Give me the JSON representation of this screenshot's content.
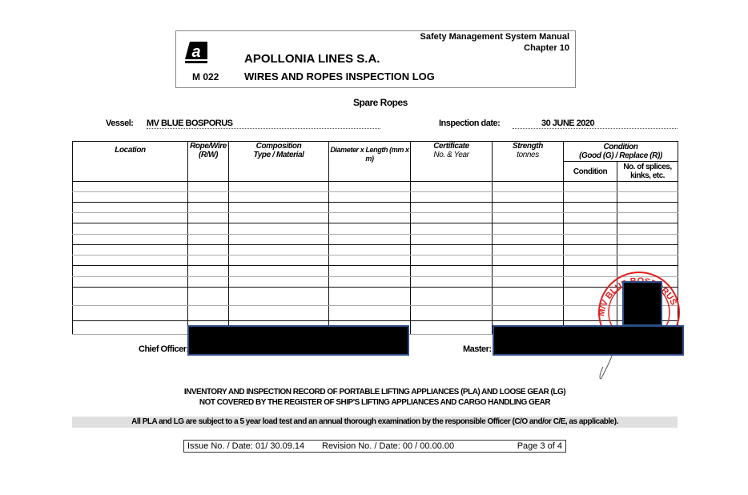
{
  "header": {
    "manual": "Safety Management System Manual",
    "chapter": "Chapter 10",
    "company": "APOLLONIA LINES S.A.",
    "form_code": "M 022",
    "form_title": "WIRES AND ROPES INSPECTION LOG",
    "logo_letter": "a"
  },
  "section_title": "Spare Ropes",
  "vessel": {
    "label": "Vessel:",
    "value": "MV BLUE BOSPORUS"
  },
  "inspection": {
    "label": "Inspection date:",
    "value": "30 JUNE 2020"
  },
  "table": {
    "headers": {
      "location": "Location",
      "rope_wire_1": "Rope/Wire",
      "rope_wire_2": "(R/W)",
      "composition_1": "Composition",
      "composition_2": "Type / Material",
      "diameter": "Diameter x Length (mm x m)",
      "certificate_1": "Certificate",
      "certificate_2": "No. & Year",
      "strength_1": "Strength",
      "strength_2": "tonnes",
      "condition_1": "Condition",
      "condition_2": "(Good (G) / Replace (R))"
    },
    "subheaders": {
      "condition": "Condition",
      "splices": "No. of splices, kinks, etc."
    }
  },
  "signatures": {
    "chief_officer": "Chief Officer:",
    "master": "Master:"
  },
  "stamp": {
    "text": "M/V BLUE BOSPORUS",
    "color": "#e02020"
  },
  "notes": {
    "line1": "INVENTORY AND INSPECTION RECORD OF PORTABLE LIFTING APPLIANCES (PLA) AND LOOSE GEAR (LG)",
    "line2": "NOT COVERED BY THE REGISTER OF SHIP'S LIFTING APPLIANCES AND CARGO HANDLING GEAR",
    "bar": "All PLA and LG are subject to a 5 year load test and an annual thorough examination by the responsible Officer (C/O and/or C/E, as applicable)."
  },
  "footer": {
    "issue": "Issue No. / Date:  01/ 30.09.14",
    "revision": "Revision No. / Date: 00 / 00.00.00",
    "page": "Page 3 of 4"
  }
}
